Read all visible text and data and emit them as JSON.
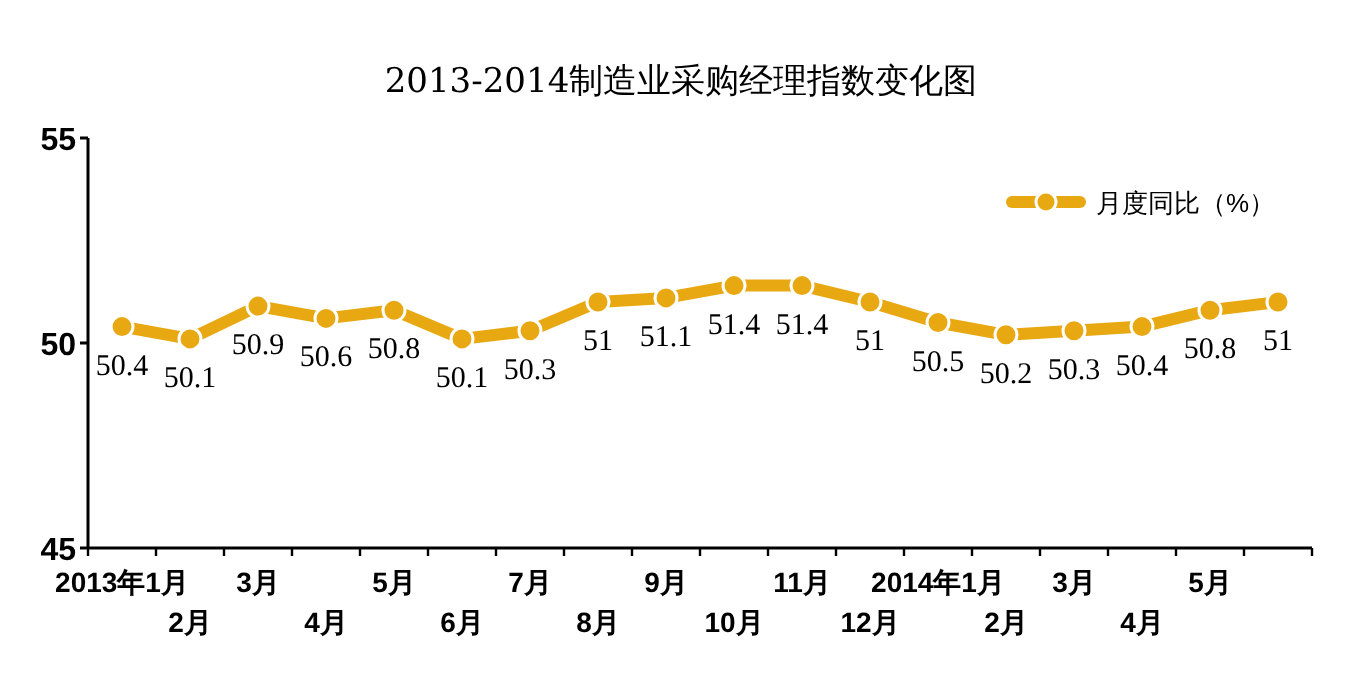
{
  "chart_data": {
    "type": "line",
    "title": "2013-2014制造业采购经理指数变化图",
    "categories": [
      "2013年1月",
      "2月",
      "3月",
      "4月",
      "5月",
      "6月",
      "7月",
      "8月",
      "9月",
      "10月",
      "11月",
      "12月",
      "2014年1月",
      "2月",
      "3月",
      "4月",
      "5月",
      null
    ],
    "series": [
      {
        "name": "月度同比（%）",
        "color": "#e8a812",
        "values": [
          50.4,
          50.1,
          50.9,
          50.6,
          50.8,
          50.1,
          50.3,
          51,
          51.1,
          51.4,
          51.4,
          51,
          50.5,
          50.2,
          50.3,
          50.4,
          50.8,
          51
        ]
      }
    ],
    "ylim": [
      45,
      55
    ],
    "yticks": [
      45,
      50,
      55
    ],
    "grid": false,
    "legend": "top right",
    "marker": "circle",
    "line_style": "solid",
    "data_labels": true
  }
}
